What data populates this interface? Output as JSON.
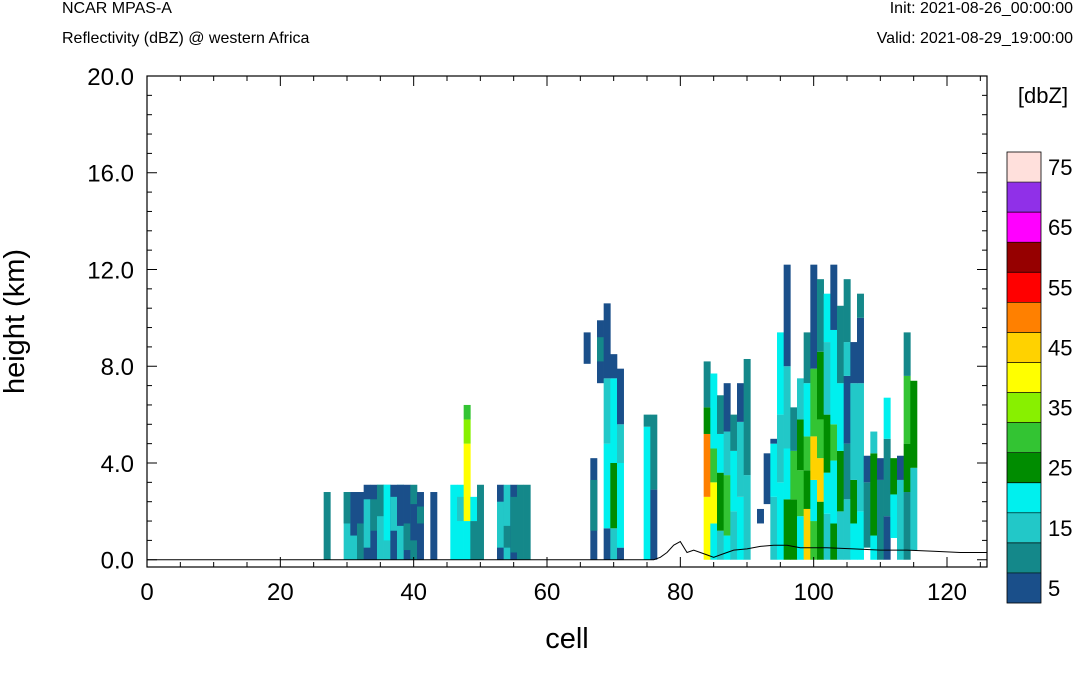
{
  "header": {
    "model": "NCAR MPAS-A",
    "field": "Reflectivity (dBZ) @ western Africa",
    "init": "Init: 2021-08-26_00:00:00",
    "valid": "Valid: 2021-08-29_19:00:00"
  },
  "chart_data": {
    "type": "heatmap",
    "xlabel": "cell",
    "ylabel": "height (km)",
    "xlim": [
      0,
      126
    ],
    "ylim": [
      -0.3,
      20.0
    ],
    "x_ticks": [
      "0",
      "20",
      "40",
      "60",
      "80",
      "100",
      "120"
    ],
    "y_ticks": [
      "0.0",
      "4.0",
      "8.0",
      "12.0",
      "16.0",
      "20.0"
    ],
    "colorbar": {
      "unit": "[dbZ]",
      "labels": [
        "5",
        "15",
        "25",
        "35",
        "45",
        "55",
        "65",
        "75"
      ],
      "colors": [
        "#1a4f8a",
        "#14888a",
        "#22c8c8",
        "#00f0ee",
        "#008c00",
        "#33c433",
        "#88f000",
        "#ffff00",
        "#ffd200",
        "#ff8000",
        "#ff0000",
        "#960000",
        "#ff00ff",
        "#9030e8",
        "#ffe0dc"
      ]
    },
    "columns": [
      {
        "x": 27,
        "cells": [
          [
            0,
            2.8,
            1
          ]
        ]
      },
      {
        "x": 30,
        "cells": [
          [
            0,
            2.8,
            2
          ],
          [
            1.5,
            2.8,
            1
          ]
        ]
      },
      {
        "x": 31,
        "cells": [
          [
            0,
            2.8,
            2
          ],
          [
            1,
            2.8,
            0
          ]
        ]
      },
      {
        "x": 32,
        "cells": [
          [
            0,
            2.8,
            1
          ],
          [
            1.5,
            2.8,
            0
          ]
        ]
      },
      {
        "x": 33,
        "cells": [
          [
            0,
            3.1,
            0
          ],
          [
            0.5,
            2.5,
            2
          ]
        ]
      },
      {
        "x": 34,
        "cells": [
          [
            0,
            3.1,
            0
          ],
          [
            1.2,
            2.5,
            1
          ]
        ]
      },
      {
        "x": 35,
        "cells": [
          [
            0,
            3.1,
            2
          ],
          [
            1.8,
            3.1,
            1
          ]
        ]
      },
      {
        "x": 36,
        "cells": [
          [
            0,
            3.1,
            2
          ],
          [
            0.8,
            3.1,
            3
          ]
        ]
      },
      {
        "x": 37,
        "cells": [
          [
            0,
            3.1,
            0
          ],
          [
            1.2,
            2.6,
            2
          ]
        ]
      },
      {
        "x": 38,
        "cells": [
          [
            0,
            3.1,
            2
          ],
          [
            1.4,
            3.1,
            0
          ]
        ]
      },
      {
        "x": 39,
        "cells": [
          [
            0,
            3.1,
            0
          ],
          [
            0.4,
            1.5,
            1
          ]
        ]
      },
      {
        "x": 40,
        "cells": [
          [
            0,
            3.1,
            1
          ],
          [
            0.8,
            2.3,
            0
          ]
        ]
      },
      {
        "x": 41,
        "cells": [
          [
            0,
            2.8,
            0
          ],
          [
            1.5,
            2.2,
            1
          ]
        ]
      },
      {
        "x": 43,
        "cells": [
          [
            0,
            2.8,
            0
          ]
        ]
      },
      {
        "x": 46,
        "cells": [
          [
            0,
            3.1,
            3
          ]
        ]
      },
      {
        "x": 47,
        "cells": [
          [
            0,
            3.1,
            3
          ],
          [
            1.6,
            2.6,
            2
          ]
        ]
      },
      {
        "x": 48,
        "cells": [
          [
            0,
            1.6,
            3
          ],
          [
            1.6,
            4.8,
            7
          ],
          [
            4.8,
            5.8,
            6
          ],
          [
            5.8,
            6.4,
            5
          ]
        ]
      },
      {
        "x": 49,
        "cells": [
          [
            0,
            1.6,
            1
          ],
          [
            1.6,
            2.6,
            3
          ]
        ]
      },
      {
        "x": 50,
        "cells": [
          [
            0,
            3.1,
            1
          ]
        ]
      },
      {
        "x": 53,
        "cells": [
          [
            0,
            3.1,
            0
          ],
          [
            0.5,
            2.4,
            2
          ]
        ]
      },
      {
        "x": 54,
        "cells": [
          [
            0,
            3.1,
            2
          ],
          [
            0.5,
            1.4,
            1
          ]
        ]
      },
      {
        "x": 55,
        "cells": [
          [
            0,
            3.1,
            0
          ],
          [
            0.3,
            2.6,
            1
          ]
        ]
      },
      {
        "x": 56,
        "cells": [
          [
            0,
            3.1,
            1
          ]
        ]
      },
      {
        "x": 57,
        "cells": [
          [
            0,
            3.1,
            1
          ]
        ]
      },
      {
        "x": 66,
        "cells": [
          [
            8.1,
            9.4,
            0
          ]
        ]
      },
      {
        "x": 67,
        "cells": [
          [
            0,
            4.2,
            0
          ],
          [
            1.2,
            3.3,
            1
          ]
        ]
      },
      {
        "x": 68,
        "cells": [
          [
            7.3,
            9.9,
            0
          ],
          [
            8.2,
            9.2,
            1
          ]
        ]
      },
      {
        "x": 69,
        "cells": [
          [
            0,
            1.3,
            0
          ],
          [
            1.3,
            4.8,
            3
          ],
          [
            4.8,
            7.5,
            2
          ],
          [
            7.5,
            10.6,
            0
          ]
        ]
      },
      {
        "x": 70,
        "cells": [
          [
            0,
            1.3,
            2
          ],
          [
            1.3,
            4.0,
            4
          ],
          [
            4.0,
            7.5,
            3
          ],
          [
            7.5,
            8.5,
            0
          ]
        ]
      },
      {
        "x": 71,
        "cells": [
          [
            0,
            0.5,
            0
          ],
          [
            0.5,
            4.0,
            3
          ],
          [
            4.0,
            5.6,
            2
          ],
          [
            5.6,
            7.9,
            0
          ]
        ]
      },
      {
        "x": 75,
        "cells": [
          [
            0,
            5.5,
            3
          ],
          [
            5.5,
            6.0,
            1
          ]
        ]
      },
      {
        "x": 76,
        "cells": [
          [
            0,
            2.9,
            0
          ],
          [
            2.9,
            6.0,
            1
          ]
        ]
      },
      {
        "x": 84,
        "cells": [
          [
            0,
            2.6,
            7
          ],
          [
            2.6,
            5.2,
            9
          ],
          [
            5.2,
            6.3,
            4
          ],
          [
            6.3,
            8.2,
            1
          ]
        ]
      },
      {
        "x": 85,
        "cells": [
          [
            0,
            1.5,
            3
          ],
          [
            1.5,
            3.2,
            7
          ],
          [
            3.2,
            4.6,
            5
          ],
          [
            4.6,
            7.7,
            3
          ]
        ]
      },
      {
        "x": 86,
        "cells": [
          [
            0,
            1.2,
            2
          ],
          [
            1.2,
            3.6,
            4
          ],
          [
            3.6,
            5.2,
            3
          ],
          [
            5.2,
            6.8,
            1
          ]
        ]
      },
      {
        "x": 87,
        "cells": [
          [
            0,
            1.0,
            3
          ],
          [
            1.0,
            3.5,
            5
          ],
          [
            3.5,
            5.3,
            2
          ],
          [
            5.3,
            7.3,
            0
          ]
        ]
      },
      {
        "x": 88,
        "cells": [
          [
            0,
            2.0,
            2
          ],
          [
            2.0,
            4.5,
            3
          ],
          [
            4.5,
            6.0,
            1
          ]
        ]
      },
      {
        "x": 89,
        "cells": [
          [
            0,
            2.6,
            3
          ],
          [
            2.6,
            5.7,
            2
          ],
          [
            5.7,
            7.3,
            0
          ]
        ]
      },
      {
        "x": 90,
        "cells": [
          [
            0,
            3.5,
            2
          ],
          [
            3.5,
            8.3,
            1
          ]
        ]
      },
      {
        "x": 92,
        "cells": [
          [
            1.5,
            2.1,
            0
          ]
        ]
      },
      {
        "x": 93,
        "cells": [
          [
            2.3,
            4.4,
            0
          ]
        ]
      },
      {
        "x": 94,
        "cells": [
          [
            0,
            2.6,
            2
          ],
          [
            2.6,
            4.8,
            3
          ],
          [
            4.8,
            5.0,
            0
          ]
        ]
      },
      {
        "x": 95,
        "cells": [
          [
            0,
            3.2,
            3
          ],
          [
            3.2,
            6.0,
            2
          ],
          [
            6.0,
            9.4,
            3
          ]
        ]
      },
      {
        "x": 96,
        "cells": [
          [
            0,
            2.5,
            4
          ],
          [
            2.5,
            4.6,
            3
          ],
          [
            4.6,
            8.0,
            2
          ],
          [
            8.0,
            12.2,
            0
          ]
        ]
      },
      {
        "x": 97,
        "cells": [
          [
            0,
            2.5,
            4
          ],
          [
            2.5,
            4.5,
            5
          ],
          [
            4.5,
            6.3,
            1
          ]
        ]
      },
      {
        "x": 98,
        "cells": [
          [
            0,
            1.8,
            3
          ],
          [
            1.8,
            3.7,
            5
          ],
          [
            3.7,
            5.8,
            4
          ],
          [
            5.8,
            7.5,
            2
          ]
        ]
      },
      {
        "x": 99,
        "cells": [
          [
            0,
            2.1,
            8
          ],
          [
            2.1,
            3.7,
            4
          ],
          [
            3.7,
            5.1,
            5
          ],
          [
            5.1,
            7.3,
            3
          ],
          [
            7.3,
            9.4,
            1
          ]
        ]
      },
      {
        "x": 100,
        "cells": [
          [
            0,
            1.6,
            5
          ],
          [
            1.6,
            3.3,
            3
          ],
          [
            3.3,
            5.1,
            8
          ],
          [
            5.1,
            7.9,
            5
          ],
          [
            7.9,
            12.2,
            0
          ]
        ]
      },
      {
        "x": 101,
        "cells": [
          [
            0,
            2.4,
            4
          ],
          [
            2.4,
            4.2,
            8
          ],
          [
            4.2,
            5.8,
            5
          ],
          [
            5.8,
            8.6,
            4
          ],
          [
            8.6,
            11.6,
            1
          ]
        ]
      },
      {
        "x": 102,
        "cells": [
          [
            0,
            1.9,
            2
          ],
          [
            1.9,
            3.6,
            3
          ],
          [
            3.6,
            6.0,
            4
          ],
          [
            6.0,
            9.0,
            2
          ],
          [
            9.0,
            11.0,
            3
          ]
        ]
      },
      {
        "x": 103,
        "cells": [
          [
            0,
            1.5,
            4
          ],
          [
            1.5,
            4.1,
            3
          ],
          [
            4.1,
            5.6,
            5
          ],
          [
            5.6,
            9.5,
            3
          ],
          [
            9.5,
            12.2,
            0
          ]
        ]
      },
      {
        "x": 104,
        "cells": [
          [
            0,
            2.0,
            2
          ],
          [
            2.0,
            4.5,
            4
          ],
          [
            4.5,
            7.3,
            3
          ],
          [
            7.3,
            10.5,
            1
          ]
        ]
      },
      {
        "x": 105,
        "cells": [
          [
            0,
            2.5,
            2
          ],
          [
            2.5,
            4.8,
            1
          ],
          [
            4.8,
            7.6,
            0
          ],
          [
            7.6,
            9.0,
            2
          ],
          [
            9.0,
            11.6,
            1
          ]
        ]
      },
      {
        "x": 106,
        "cells": [
          [
            0,
            1.5,
            3
          ],
          [
            1.5,
            3.3,
            4
          ],
          [
            3.3,
            7.3,
            2
          ],
          [
            7.3,
            9.0,
            0
          ]
        ]
      },
      {
        "x": 107,
        "cells": [
          [
            0,
            2.0,
            3
          ],
          [
            2.0,
            7.3,
            2
          ],
          [
            7.3,
            10.0,
            0
          ],
          [
            10.0,
            11.0,
            1
          ]
        ]
      },
      {
        "x": 108,
        "cells": [
          [
            0.5,
            3.2,
            1
          ],
          [
            3.2,
            4.3,
            0
          ]
        ]
      },
      {
        "x": 109,
        "cells": [
          [
            0,
            1.0,
            3
          ],
          [
            1.0,
            4.4,
            4
          ],
          [
            4.4,
            5.3,
            2
          ]
        ]
      },
      {
        "x": 110,
        "cells": [
          [
            0,
            3.3,
            1
          ],
          [
            3.3,
            4.2,
            0
          ]
        ]
      },
      {
        "x": 111,
        "cells": [
          [
            0,
            1.8,
            0
          ],
          [
            1.8,
            5.0,
            1
          ],
          [
            5.0,
            6.7,
            3
          ]
        ]
      },
      {
        "x": 112,
        "cells": [
          [
            0.9,
            2.7,
            3
          ],
          [
            2.7,
            4.2,
            4
          ]
        ]
      },
      {
        "x": 113,
        "cells": [
          [
            0,
            3.3,
            2
          ],
          [
            3.3,
            4.3,
            0
          ]
        ]
      },
      {
        "x": 114,
        "cells": [
          [
            0,
            2.8,
            1
          ],
          [
            2.8,
            4.8,
            4
          ],
          [
            4.8,
            7.6,
            5
          ],
          [
            7.6,
            9.4,
            1
          ]
        ]
      },
      {
        "x": 115,
        "cells": [
          [
            0.4,
            3.8,
            2
          ],
          [
            3.8,
            7.4,
            4
          ]
        ]
      }
    ],
    "terrain": [
      [
        0,
        0
      ],
      [
        76,
        0
      ],
      [
        77,
        0.1
      ],
      [
        78,
        0.3
      ],
      [
        79,
        0.6
      ],
      [
        80,
        0.75
      ],
      [
        81,
        0.3
      ],
      [
        82,
        0.4
      ],
      [
        83,
        0.3
      ],
      [
        84,
        0.2
      ],
      [
        85,
        0.1
      ],
      [
        86,
        0.2
      ],
      [
        87,
        0.3
      ],
      [
        88,
        0.4
      ],
      [
        90,
        0.45
      ],
      [
        92,
        0.55
      ],
      [
        94,
        0.6
      ],
      [
        96,
        0.6
      ],
      [
        98,
        0.5
      ],
      [
        102,
        0.5
      ],
      [
        106,
        0.45
      ],
      [
        110,
        0.4
      ],
      [
        114,
        0.4
      ],
      [
        118,
        0.35
      ],
      [
        122,
        0.3
      ],
      [
        126,
        0.3
      ]
    ]
  }
}
